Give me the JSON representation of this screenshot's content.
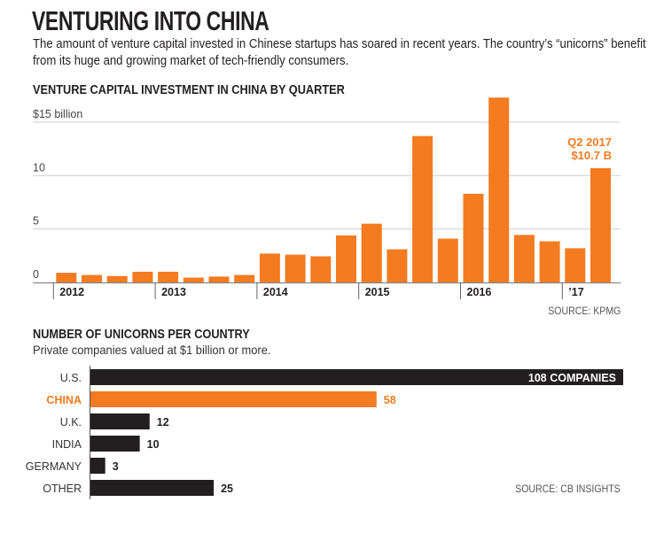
{
  "header": {
    "title": "VENTURING INTO CHINA",
    "subtitle": "The amount of venture capital invested in Chinese startups has soared in recent years. The country’s “unicorns” benefit from its huge and growing market of tech-friendly consumers."
  },
  "colors": {
    "accent": "#f47b20",
    "dark": "#231f20",
    "grid": "#cfcfcf",
    "text": "#231f20"
  },
  "chart_data": [
    {
      "type": "bar",
      "title": "VENTURE CAPITAL INVESTMENT IN CHINA BY QUARTER",
      "ylabel": "$15 billion",
      "ylim": [
        0,
        15
      ],
      "yticks": [
        0,
        5,
        10,
        15
      ],
      "ytick_labels": [
        "0",
        "5",
        "10",
        "$15 billion"
      ],
      "grid": true,
      "categories": [
        "Q1 2012",
        "Q2 2012",
        "Q3 2012",
        "Q4 2012",
        "Q1 2013",
        "Q2 2013",
        "Q3 2013",
        "Q4 2013",
        "Q1 2014",
        "Q2 2014",
        "Q3 2014",
        "Q4 2014",
        "Q1 2015",
        "Q2 2015",
        "Q3 2015",
        "Q4 2015",
        "Q1 2016",
        "Q2 2016",
        "Q3 2016",
        "Q4 2016",
        "Q1 2017",
        "Q2 2017"
      ],
      "values": [
        0.9,
        0.7,
        0.6,
        1.0,
        1.0,
        0.45,
        0.55,
        0.7,
        2.7,
        2.6,
        2.45,
        4.4,
        5.5,
        3.1,
        13.7,
        4.1,
        8.3,
        17.3,
        4.45,
        3.85,
        3.2,
        10.7
      ],
      "xaxis_groups": [
        {
          "label": "2012",
          "start_index": 0
        },
        {
          "label": "2013",
          "start_index": 4
        },
        {
          "label": "2014",
          "start_index": 8
        },
        {
          "label": "2015",
          "start_index": 12
        },
        {
          "label": "2016",
          "start_index": 16
        },
        {
          "label": "’17",
          "start_index": 20
        }
      ],
      "annotation": {
        "index": 21,
        "lines": [
          "Q2 2017",
          "$10.7 B"
        ]
      },
      "source": "SOURCE: KPMG"
    },
    {
      "type": "bar",
      "orientation": "horizontal",
      "title": "NUMBER OF UNICORNS PER COUNTRY",
      "subtitle": "Private companies valued at $1 billion or more.",
      "categories": [
        "U.S.",
        "CHINA",
        "U.K.",
        "INDIA",
        "GERMANY",
        "OTHER"
      ],
      "values": [
        108,
        58,
        12,
        10,
        3,
        25
      ],
      "value_labels": [
        "108 COMPANIES",
        "58",
        "12",
        "10",
        "3",
        "25"
      ],
      "highlight": "CHINA",
      "xlim": [
        0,
        108
      ],
      "source": "SOURCE: CB INSIGHTS"
    }
  ]
}
